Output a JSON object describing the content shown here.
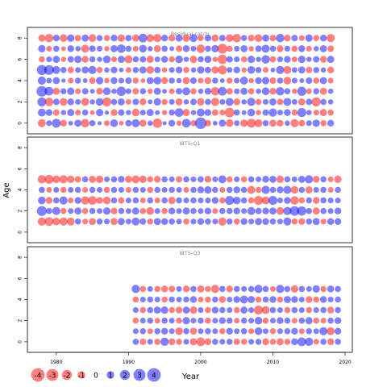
{
  "chart_data": {
    "type": "scatter",
    "ylabel": "Age",
    "xlabel": "Year",
    "xlim": [
      1976,
      2021
    ],
    "x_ticks": [
      1980,
      1990,
      2000,
      2010,
      2020
    ],
    "ylim": [
      -1,
      9
    ],
    "y_ticks": [
      0,
      2,
      4,
      6,
      8
    ],
    "positive_color": "#0000ff",
    "negative_color": "#ff0000",
    "fill_alpha": 0.5,
    "legend": {
      "position": "bottom-left",
      "values": [
        -4,
        -3,
        -2,
        -1,
        0,
        1,
        2,
        3,
        4
      ],
      "labels": [
        "-4",
        "-3",
        "-2",
        "-1",
        "0",
        "1",
        "2",
        "3",
        "4"
      ]
    },
    "panels": [
      {
        "title": "Residual catch",
        "years": [
          1978,
          2018
        ],
        "ages": [
          0,
          8
        ],
        "rows": [
          [
            -1.2,
            0.5,
            1.6,
            -0.8,
            0.3,
            0.9,
            -1.4,
            0.6,
            0.2,
            -0.5,
            1.1,
            -0.3,
            0.7,
            1.3,
            -0.9,
            0.4,
            -1.8,
            0.2,
            0.8,
            -0.4,
            1.5,
            -0.6,
            2.9,
            -0.7,
            0.3,
            0.9,
            -1.1,
            0.5,
            -1.0,
            -1.6,
            -1.2,
            0.6,
            -0.9,
            -0.8,
            0.4,
            -1.3,
            -0.7,
            0.5,
            1.0,
            -0.6,
            0.8
          ],
          [
            1.2,
            0.8,
            -0.7,
            0.4,
            0.9,
            -0.5,
            0.6,
            -0.3,
            1.0,
            0.2,
            -0.8,
            0.7,
            0.4,
            -1.1,
            0.5,
            0.9,
            0.3,
            -0.4,
            0.6,
            1.5,
            -0.9,
            0.4,
            1.2,
            0.8,
            -0.7,
            -0.5,
            -1.9,
            0.6,
            0.3,
            1.1,
            -0.4,
            0.7,
            1.3,
            0.5,
            0.8,
            -0.6,
            1.6,
            0.4,
            -0.5,
            -0.9,
            -0.6
          ],
          [
            1.6,
            -1.4,
            0.7,
            -1.1,
            0.8,
            0.5,
            -1.2,
            0.4,
            1.1,
            -1.6,
            0.6,
            0.9,
            -0.5,
            0.7,
            -0.8,
            0.3,
            1.0,
            -0.6,
            0.5,
            -0.9,
            0.4,
            0.7,
            -1.0,
            0.6,
            -1.3,
            0.5,
            1.2,
            -0.8,
            0.4,
            1.3,
            -0.6,
            0.5,
            0.9,
            -0.7,
            1.2,
            0.5,
            -0.9,
            0.7,
            -1.7,
            0.6,
            0.4
          ],
          [
            2.4,
            1.5,
            -0.9,
            0.6,
            1.0,
            -0.5,
            0.7,
            0.3,
            -0.8,
            1.1,
            0.4,
            1.8,
            0.5,
            -0.7,
            0.6,
            -0.4,
            0.9,
            0.3,
            -0.5,
            0.7,
            1.2,
            -0.6,
            0.4,
            0.8,
            -1.4,
            1.5,
            -0.7,
            0.5,
            0.9,
            -0.6,
            0.4,
            1.1,
            -0.8,
            1.4,
            0.6,
            -0.4,
            1.7,
            -0.5,
            0.6,
            -0.9,
            0.4
          ],
          [
            1.3,
            0.5,
            0.9,
            0.2,
            -0.5,
            0.6,
            0.3,
            -0.7,
            1.0,
            -0.4,
            0.8,
            0.5,
            0.7,
            -0.6,
            -0.3,
            0.9,
            1.1,
            -0.8,
            0.6,
            0.4,
            -0.9,
            0.7,
            -0.5,
            -0.8,
            0.6,
            0.3,
            -0.6,
            0.5,
            1.2,
            -0.4,
            0.8,
            1.0,
            -0.7,
            0.6,
            -1.1,
            0.5,
            0.3,
            0.7,
            -0.6,
            0.9,
            -0.5
          ],
          [
            2.1,
            2.0,
            1.2,
            0.6,
            -0.7,
            0.5,
            0.9,
            1.3,
            -0.6,
            0.4,
            0.8,
            0.3,
            -0.5,
            0.6,
            0.9,
            -1.1,
            0.7,
            -0.4,
            0.5,
            0.8,
            -0.6,
            0.4,
            1.0,
            0.7,
            -1.0,
            -1.6,
            0.5,
            0.8,
            -0.4,
            1.1,
            0.6,
            -0.5,
            0.3,
            1.3,
            -1.2,
            0.5,
            0.9,
            -0.7,
            0.6,
            0.4,
            -0.8
          ],
          [
            -0.6,
            0.5,
            0.9,
            -0.4,
            0.7,
            1.0,
            -0.8,
            0.6,
            0.4,
            1.1,
            -0.5,
            0.9,
            -1.2,
            0.6,
            0.7,
            -0.9,
            0.5,
            0.8,
            -0.6,
            1.1,
            0.4,
            -1.0,
            0.6,
            0.9,
            -0.4,
            -1.8,
            0.7,
            0.5,
            -0.6,
            1.0,
            0.4,
            1.4,
            -0.7,
            0.5,
            0.8,
            -0.5,
            1.0,
            0.4,
            0.7,
            -0.8,
            0.9
          ],
          [
            1.0,
            -0.5,
            0.6,
            -0.3,
            0.8,
            0.4,
            -1.2,
            0.7,
            0.5,
            -0.4,
            0.9,
            1.4,
            0.6,
            -0.5,
            1.1,
            0.4,
            -0.9,
            0.6,
            0.3,
            -0.7,
            0.8,
            0.5,
            -1.4,
            0.6,
            1.0,
            -2.0,
            -0.6,
            0.5,
            0.9,
            -0.4,
            0.7,
            1.2,
            0.6,
            -0.8,
            0.5,
            -0.6,
            0.8,
            -0.5,
            0.4,
            0.9,
            -0.7
          ],
          [
            -0.9,
            -1.4,
            0.8,
            -1.1,
            1.0,
            -0.7,
            0.9,
            -1.1,
            0.6,
            -0.6,
            0.8,
            -1.0,
            0.7,
            -0.9,
            1.5,
            -1.1,
            -1.3,
            0.8,
            -0.8,
            0.9,
            -1.0,
            1.2,
            -0.6,
            0.8,
            -0.9,
            0.7,
            -1.1,
            -1.4,
            0.6,
            -0.8,
            -1.1,
            0.9,
            -0.7,
            1.4,
            -0.8,
            0.7,
            -0.5,
            1.0,
            -0.6,
            0.8,
            -1.3
          ]
        ]
      },
      {
        "title": "IBTS-Q1",
        "years": [
          1978,
          2019
        ],
        "ages": [
          1,
          5
        ],
        "rows": [
          [
            -1.3,
            -1.5,
            -1.1,
            -1.3,
            -1.2,
            0.6,
            -0.5,
            -0.9,
            0.6,
            0.5,
            -0.9,
            0.9,
            0.5,
            1.2,
            0.7,
            -0.6,
            0.9,
            0.8,
            0.6,
            0.5,
            -0.6,
            0.5,
            0.8,
            0.6,
            0.5,
            -1.3,
            0.6,
            -0.6,
            0.8,
            0.5,
            0.9,
            0.8,
            0.6,
            0.5,
            1.2,
            -0.6,
            -0.8,
            0.6,
            0.9,
            -0.5,
            0.8,
            0.8
          ],
          [
            2.0,
            0.6,
            1.3,
            -0.6,
            0.5,
            0.9,
            -0.6,
            0.6,
            0.5,
            1.0,
            -0.8,
            0.6,
            0.5,
            0.9,
            -0.6,
            -1.1,
            0.5,
            -0.6,
            0.8,
            0.5,
            0.9,
            0.6,
            0.5,
            0.8,
            -0.5,
            0.6,
            0.6,
            0.8,
            0.5,
            1.2,
            0.7,
            0.8,
            0.9,
            -1.1,
            1.3,
            1.9,
            1.7,
            0.6,
            -0.9,
            0.6,
            0.5,
            0.8
          ],
          [
            1.1,
            -0.8,
            0.6,
            1.3,
            -0.5,
            0.8,
            -1.3,
            -1.5,
            -0.8,
            -1.1,
            0.6,
            -0.7,
            0.5,
            0.6,
            -0.5,
            0.6,
            -0.5,
            0.6,
            -1.0,
            0.6,
            0.5,
            0.6,
            0.5,
            0.5,
            0.8,
            -0.6,
            1.6,
            1.1,
            0.6,
            -0.6,
            -1.6,
            -1.2,
            1.6,
            0.5,
            0.8,
            -1.4,
            -0.6,
            0.6,
            -0.8,
            0.6,
            0.5,
            0.5
          ],
          [
            0.6,
            -0.5,
            0.5,
            -0.6,
            0.5,
            0.6,
            -0.5,
            0.6,
            0.5,
            -0.6,
            0.6,
            0.5,
            -0.5,
            0.6,
            0.5,
            -0.6,
            0.6,
            0.5,
            0.6,
            0.5,
            -0.5,
            0.6,
            0.8,
            1.0,
            0.6,
            -0.5,
            0.6,
            0.8,
            0.6,
            -1.2,
            -0.6,
            1.3,
            0.6,
            0.8,
            1.2,
            -1.1,
            0.6,
            -0.9,
            0.5,
            0.6,
            -0.5,
            0.6
          ],
          [
            -1.3,
            -1.6,
            -1.1,
            -1.3,
            -1.0,
            -0.7,
            0.6,
            -0.9,
            -1.0,
            0.5,
            0.6,
            0.8,
            -0.9,
            -1.2,
            -1.0,
            -0.6,
            -0.8,
            0.6,
            0.5,
            -0.7,
            0.6,
            0.5,
            0.6,
            -0.8,
            0.5,
            1.2,
            -0.6,
            0.5,
            -0.6,
            0.6,
            0.5,
            0.8,
            0.9,
            -1.0,
            0.6,
            0.5,
            0.9,
            1.3,
            -0.8,
            0.6,
            -0.5,
            -1.0
          ]
        ]
      },
      {
        "title": "IBTS-Q3",
        "years": [
          1991,
          2019
        ],
        "ages": [
          0,
          5
        ],
        "rows": [
          [
            0.6,
            -0.7,
            0.5,
            -0.6,
            1.3,
            -0.8,
            -0.6,
            0.5,
            -0.9,
            -1.5,
            -0.8,
            0.6,
            0.5,
            0.6,
            -0.7,
            -0.6,
            0.5,
            0.6,
            -0.8,
            -0.6,
            -0.9,
            -0.6,
            0.8,
            1.5,
            1.3,
            -0.5,
            0.6,
            -0.8,
            0.6
          ],
          [
            0.5,
            0.6,
            -0.5,
            0.6,
            0.8,
            0.5,
            -1.1,
            0.6,
            -0.9,
            0.5,
            0.6,
            0.5,
            -0.6,
            0.8,
            0.5,
            0.6,
            -0.5,
            1.1,
            0.5,
            -0.6,
            0.5,
            0.6,
            0.8,
            -0.5,
            0.6,
            0.5,
            1.3,
            -1.2,
            0.8
          ],
          [
            -0.6,
            0.5,
            0.6,
            -0.5,
            0.6,
            0.5,
            -0.6,
            1.0,
            0.5,
            0.6,
            -0.6,
            0.5,
            0.8,
            0.6,
            -0.5,
            0.6,
            0.5,
            1.1,
            -0.6,
            0.5,
            0.8,
            0.6,
            -0.5,
            0.6,
            0.9,
            -0.6,
            -0.5,
            0.6,
            0.8
          ],
          [
            0.5,
            -0.6,
            0.6,
            0.9,
            1.0,
            -0.6,
            -0.8,
            0.9,
            -1.0,
            0.5,
            -0.6,
            0.8,
            0.6,
            0.5,
            -0.6,
            0.9,
            0.5,
            -1.6,
            -1.2,
            0.6,
            0.5,
            -0.6,
            0.6,
            0.5,
            -0.6,
            0.5,
            0.6,
            -0.8,
            0.6
          ],
          [
            -0.6,
            0.5,
            0.6,
            0.5,
            -0.6,
            0.6,
            0.5,
            0.6,
            0.8,
            -0.5,
            -0.6,
            0.6,
            -0.8,
            0.5,
            0.8,
            1.2,
            0.9,
            -0.6,
            0.6,
            0.8,
            -0.6,
            0.9,
            0.8,
            0.5,
            -0.8,
            -0.6,
            0.8,
            0.5,
            0.6
          ],
          [
            1.3,
            -0.6,
            0.5,
            -0.6,
            -0.8,
            -0.7,
            0.5,
            -0.8,
            0.6,
            -0.9,
            -0.6,
            -1.3,
            0.6,
            -0.8,
            0.6,
            0.5,
            0.6,
            1.3,
            0.6,
            -0.5,
            1.3,
            0.6,
            -1.0,
            0.6,
            0.5,
            1.0,
            -0.6,
            0.8,
            0.6
          ]
        ]
      }
    ]
  }
}
